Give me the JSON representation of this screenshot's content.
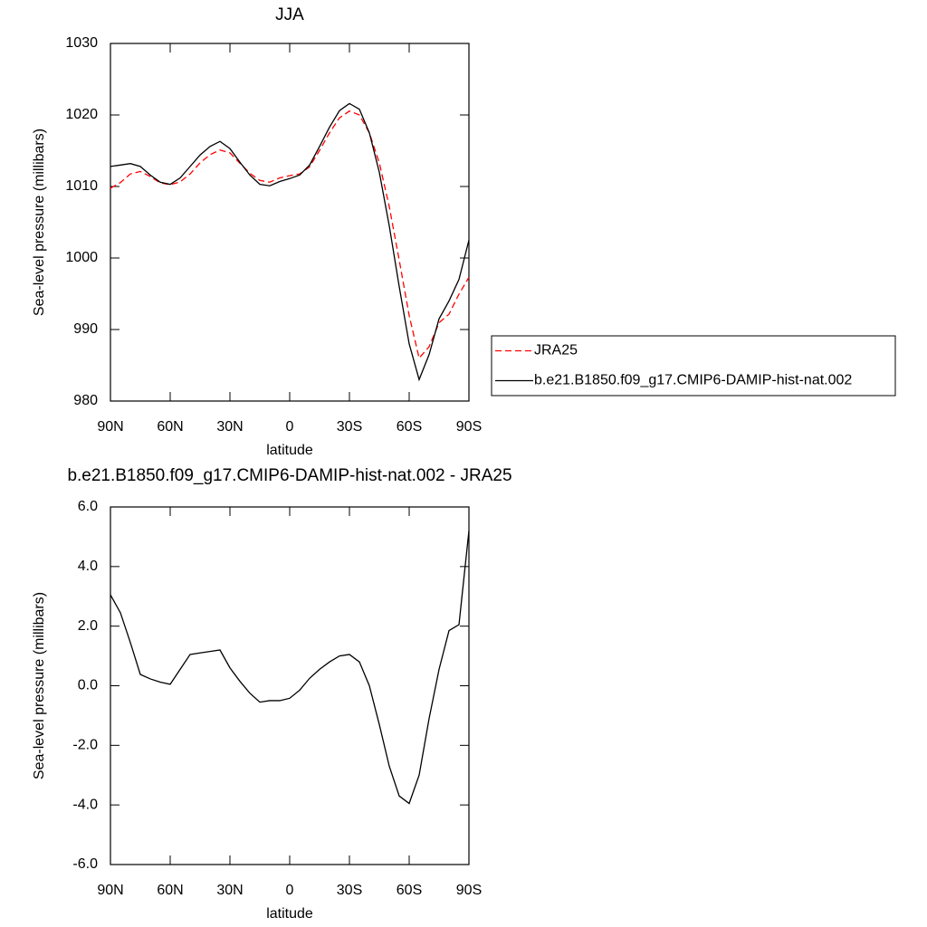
{
  "chart_data": [
    {
      "type": "line",
      "title": "JJA",
      "x_label": "latitude",
      "y_label": "Sea-level pressure (millibars)",
      "x": [
        90,
        85,
        80,
        75,
        70,
        65,
        60,
        55,
        50,
        45,
        40,
        35,
        30,
        25,
        20,
        15,
        10,
        5,
        0,
        -5,
        -10,
        -15,
        -20,
        -25,
        -30,
        -35,
        -40,
        -45,
        -50,
        -55,
        -60,
        -65,
        -70,
        -75,
        -80,
        -85,
        -90
      ],
      "series": [
        {
          "name": "JRA25",
          "color": "#ff0000",
          "dashed": true,
          "values": [
            1009.75,
            1010.55,
            1011.75,
            1012.1,
            1011.4,
            1010.5,
            1010.25,
            1010.65,
            1011.75,
            1013.3,
            1014.45,
            1015.1,
            1014.7,
            1013.25,
            1011.85,
            1010.85,
            1010.6,
            1011.2,
            1011.52,
            1011.75,
            1012.75,
            1015.05,
            1017.5,
            1019.6,
            1020.55,
            1020.0,
            1017.5,
            1013.3,
            1007.2,
            999.7,
            991.95,
            986.0,
            987.6,
            990.95,
            992.15,
            994.95,
            997.3
          ]
        },
        {
          "name": "b.e21.B1850.f09_g17.CMIP6-DAMIP-hist-nat.002",
          "color": "#000000",
          "dashed": false,
          "values": [
            1012.8,
            1013.0,
            1013.2,
            1012.8,
            1011.6,
            1010.6,
            1010.3,
            1011.2,
            1012.8,
            1014.4,
            1015.6,
            1016.3,
            1015.3,
            1013.4,
            1011.6,
            1010.3,
            1010.1,
            1010.7,
            1011.1,
            1011.6,
            1013.0,
            1015.6,
            1018.3,
            1020.6,
            1021.6,
            1020.8,
            1017.5,
            1012.0,
            1004.5,
            996.0,
            988.0,
            983.0,
            986.5,
            991.5,
            994.0,
            997.0,
            1002.5
          ]
        }
      ],
      "xlim": [
        90,
        -90
      ],
      "xticks": [
        {
          "value": 90,
          "label": "90N"
        },
        {
          "value": 60,
          "label": "60N"
        },
        {
          "value": 30,
          "label": "30N"
        },
        0,
        {
          "value": -30,
          "label": "30S"
        },
        {
          "value": -60,
          "label": "60S"
        },
        {
          "value": -90,
          "label": "90S"
        }
      ],
      "ylim": [
        980,
        1030
      ],
      "yticks": [
        980,
        990,
        1000,
        1010,
        1020,
        1030
      ],
      "legend": "right"
    },
    {
      "type": "line",
      "title": "b.e21.B1850.f09_g17.CMIP6-DAMIP-hist-nat.002 - JRA25",
      "x_label": "latitude",
      "y_label": "Sea-level pressure (millibars)",
      "x": [
        90,
        85,
        80,
        75,
        70,
        65,
        60,
        55,
        50,
        45,
        40,
        35,
        30,
        25,
        20,
        15,
        10,
        5,
        0,
        -5,
        -10,
        -15,
        -20,
        -25,
        -30,
        -35,
        -40,
        -45,
        -50,
        -55,
        -60,
        -65,
        -70,
        -75,
        -80,
        -85,
        -90
      ],
      "series": [
        {
          "color": "#000000",
          "dashed": false,
          "values": [
            3.05,
            2.45,
            1.45,
            0.38,
            0.23,
            0.12,
            0.05,
            0.55,
            1.05,
            1.1,
            1.15,
            1.2,
            0.6,
            0.15,
            -0.25,
            -0.55,
            -0.5,
            -0.5,
            -0.42,
            -0.15,
            0.25,
            0.55,
            0.8,
            1.0,
            1.05,
            0.8,
            0.0,
            -1.3,
            -2.7,
            -3.7,
            -3.95,
            -3.0,
            -1.1,
            0.55,
            1.85,
            2.05,
            5.2
          ]
        }
      ],
      "xlim": [
        90,
        -90
      ],
      "xticks": [
        {
          "value": 90,
          "label": "90N"
        },
        {
          "value": 60,
          "label": "60N"
        },
        {
          "value": 30,
          "label": "30N"
        },
        0,
        {
          "value": -30,
          "label": "30S"
        },
        {
          "value": -60,
          "label": "60S"
        },
        {
          "value": -90,
          "label": "90S"
        }
      ],
      "ylim": [
        -6,
        6
      ],
      "yticks": [
        {
          "value": -6,
          "label": "-6.0"
        },
        {
          "value": -4,
          "label": "-4.0"
        },
        {
          "value": -2,
          "label": "-2.0"
        },
        {
          "value": 0,
          "label": "0.0"
        },
        {
          "value": 2,
          "label": "2.0"
        },
        {
          "value": 4,
          "label": "4.0"
        },
        {
          "value": 6,
          "label": "6.0"
        }
      ]
    }
  ]
}
